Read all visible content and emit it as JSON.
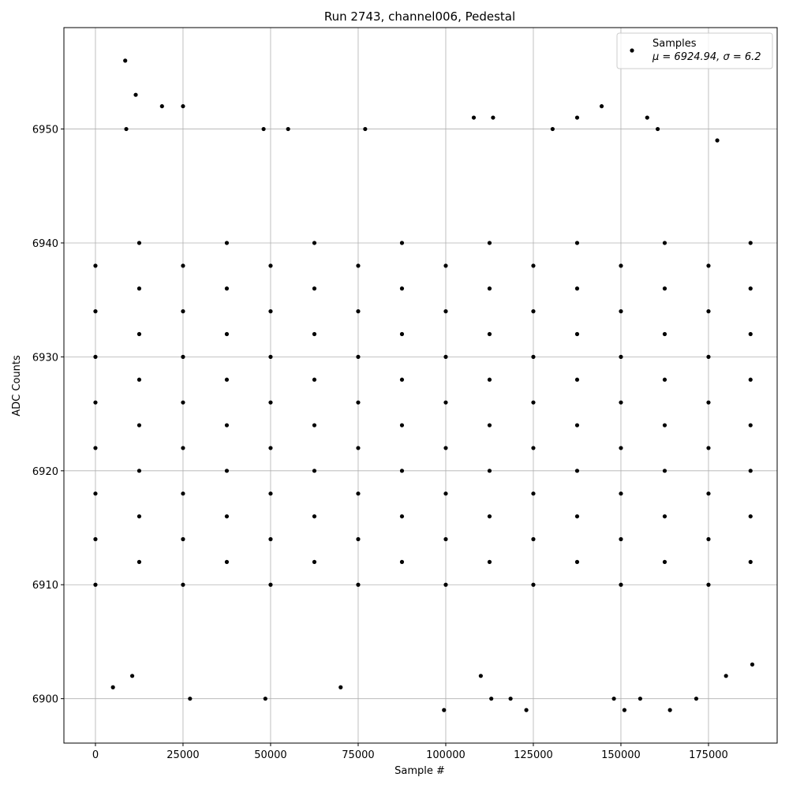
{
  "chart_data": {
    "type": "scatter",
    "title": "Run 2743, channel006, Pedestal",
    "x_label": "Sample #",
    "y_label": "ADC Counts",
    "legend_note": "μ = 6924.94, σ = 6.2",
    "legend": "upper right",
    "grid": true,
    "xlim": [
      -9000,
      194600
    ],
    "ylim": [
      6896.1,
      6958.9
    ],
    "xticks": [
      0,
      25000,
      50000,
      75000,
      100000,
      125000,
      150000,
      175000
    ],
    "yticks": [
      6900,
      6910,
      6920,
      6930,
      6940,
      6950
    ],
    "series": [
      {
        "name": "Samples",
        "color": "#000000",
        "x": [
          0,
          25000,
          50000,
          75000,
          100000,
          125000,
          150000,
          175000,
          12500,
          37500,
          62500,
          87500,
          112500,
          137500,
          162500,
          187000,
          0,
          25000,
          50000,
          75000,
          100000,
          125000,
          150000,
          175000,
          12500,
          37500,
          62500,
          87500,
          112500,
          137500,
          162500,
          187000,
          0,
          25000,
          50000,
          75000,
          100000,
          125000,
          150000,
          175000,
          12500,
          37500,
          62500,
          87500,
          112500,
          137500,
          162500,
          187000,
          0,
          25000,
          50000,
          75000,
          100000,
          125000,
          150000,
          175000,
          12500,
          37500,
          62500,
          87500,
          112500,
          137500,
          162500,
          187000,
          0,
          25000,
          50000,
          75000,
          100000,
          125000,
          150000,
          175000,
          12500,
          37500,
          62500,
          87500,
          112500,
          137500,
          162500,
          187000,
          0,
          25000,
          50000,
          75000,
          100000,
          125000,
          150000,
          175000,
          12500,
          37500,
          62500,
          87500,
          112500,
          137500,
          162500,
          187000,
          0,
          25000,
          50000,
          75000,
          100000,
          125000,
          150000,
          175000,
          12500,
          37500,
          62500,
          87500,
          112500,
          137500,
          162500,
          187000,
          0,
          25000,
          50000,
          75000,
          100000,
          125000,
          150000,
          175000,
          12500,
          37500,
          62500,
          87500,
          112500,
          137500,
          162500,
          187000,
          8500,
          11500,
          19000,
          25000,
          8800,
          48000,
          55000,
          77000,
          108000,
          113500,
          130500,
          137500,
          144500,
          157500,
          160500,
          177500,
          5000,
          27000,
          48500,
          70000,
          99500,
          113000,
          118500,
          123000,
          148000,
          151000,
          155500,
          164000,
          171500,
          187500,
          10500,
          110000,
          180000
        ],
        "y": [
          6910,
          6910,
          6910,
          6910,
          6910,
          6910,
          6910,
          6910,
          6912,
          6912,
          6912,
          6912,
          6912,
          6912,
          6912,
          6912,
          6914,
          6914,
          6914,
          6914,
          6914,
          6914,
          6914,
          6914,
          6916,
          6916,
          6916,
          6916,
          6916,
          6916,
          6916,
          6916,
          6918,
          6918,
          6918,
          6918,
          6918,
          6918,
          6918,
          6918,
          6920,
          6920,
          6920,
          6920,
          6920,
          6920,
          6920,
          6920,
          6922,
          6922,
          6922,
          6922,
          6922,
          6922,
          6922,
          6922,
          6924,
          6924,
          6924,
          6924,
          6924,
          6924,
          6924,
          6924,
          6926,
          6926,
          6926,
          6926,
          6926,
          6926,
          6926,
          6926,
          6928,
          6928,
          6928,
          6928,
          6928,
          6928,
          6928,
          6928,
          6930,
          6930,
          6930,
          6930,
          6930,
          6930,
          6930,
          6930,
          6932,
          6932,
          6932,
          6932,
          6932,
          6932,
          6932,
          6932,
          6934,
          6934,
          6934,
          6934,
          6934,
          6934,
          6934,
          6934,
          6936,
          6936,
          6936,
          6936,
          6936,
          6936,
          6936,
          6936,
          6938,
          6938,
          6938,
          6938,
          6938,
          6938,
          6938,
          6938,
          6940,
          6940,
          6940,
          6940,
          6940,
          6940,
          6940,
          6940,
          6956,
          6953,
          6952,
          6952,
          6950,
          6950,
          6950,
          6950,
          6951,
          6951,
          6950,
          6951,
          6952,
          6951,
          6950,
          6949,
          6901,
          6900,
          6900,
          6901,
          6899,
          6900,
          6900,
          6899,
          6900,
          6899,
          6900,
          6899,
          6900,
          6903,
          6902,
          6902,
          6902
        ]
      }
    ]
  }
}
